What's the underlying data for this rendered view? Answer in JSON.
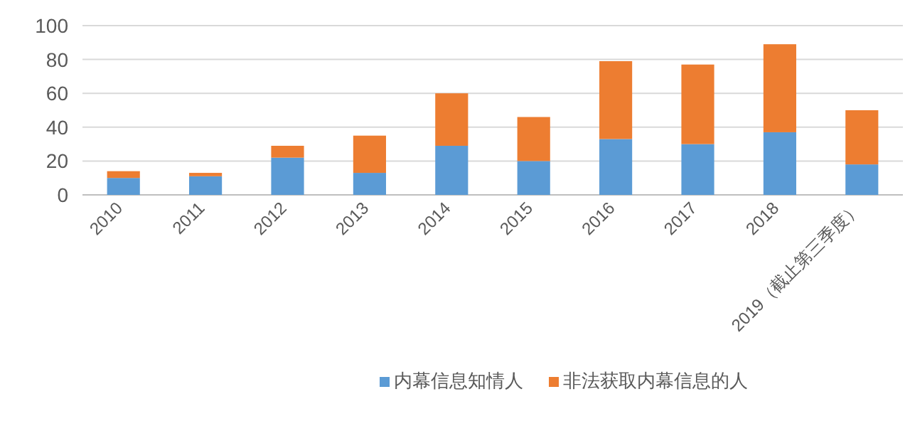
{
  "chart_data": {
    "type": "bar",
    "stacked": true,
    "categories": [
      "2010",
      "2011",
      "2012",
      "2013",
      "2014",
      "2015",
      "2016",
      "2017",
      "2018",
      "2019（截止第三季度）"
    ],
    "series": [
      {
        "name": "内幕信息知情人",
        "color": "#5b9bd5",
        "values": [
          10,
          11,
          22,
          13,
          29,
          20,
          33,
          30,
          37,
          18
        ]
      },
      {
        "name": "非法获取内幕信息的人",
        "color": "#ed7d31",
        "values": [
          4,
          2,
          7,
          22,
          31,
          26,
          46,
          47,
          52,
          32
        ]
      }
    ],
    "ylim": [
      0,
      100
    ],
    "yticks": [
      0,
      20,
      40,
      60,
      80,
      100
    ],
    "grid": "y",
    "legend": "bottom"
  }
}
